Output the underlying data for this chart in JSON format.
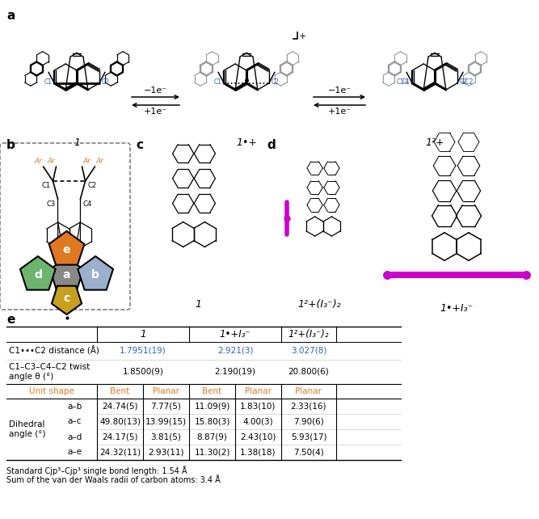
{
  "blue_color": "#2563c0",
  "orange_color": "#e07820",
  "green_color": "#6db56d",
  "gray_color": "#888888",
  "light_blue_color": "#9ab0cc",
  "dihedral_rows": [
    [
      "a–b",
      "24.74(5)",
      "7.77(5)",
      "11.09(9)",
      "1.83(10)",
      "2.33(16)"
    ],
    [
      "a–c",
      "49.80(13)",
      "13.99(15)",
      "15.80(3)",
      "4.00(3)",
      "7.90(6)"
    ],
    [
      "a–d",
      "24.17(5)",
      "3.81(5)",
      "8.87(9)",
      "2.43(10)",
      "5.93(17)"
    ],
    [
      "a–e",
      "24.32(11)",
      "2.93(11)",
      "11.30(2)",
      "1.38(18)",
      "7.50(4)"
    ]
  ],
  "footnote1": "Standard Csp³–Csp³ single bond length: 1.54 Å",
  "footnote2": "Sum of the van der Waals radii of carbon atoms: 3.4 Å"
}
